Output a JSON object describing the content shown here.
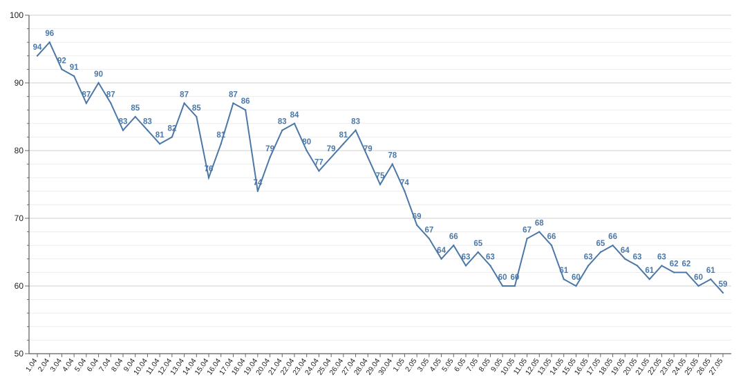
{
  "chart_data": {
    "type": "line",
    "title": "",
    "xlabel": "",
    "ylabel": "",
    "ylim": [
      50,
      100
    ],
    "y_ticks": [
      "50",
      "60",
      "70",
      "80",
      "90",
      "100"
    ],
    "grid": true,
    "legend": "none",
    "colors": {
      "line": "#4b77a6",
      "labels": "#4a78a8"
    },
    "categories": [
      "1.04",
      "2.04",
      "3.04",
      "4.04",
      "5.04",
      "6.04",
      "7.04",
      "8.04",
      "9.04",
      "10.04",
      "11.04",
      "12.04",
      "13.04",
      "14.04",
      "15.04",
      "16.04",
      "17.04",
      "18.04",
      "19.04",
      "20.04",
      "21.04",
      "22.04",
      "23.04",
      "24.04",
      "25.04",
      "26.04",
      "27.04",
      "28.04",
      "29.04",
      "30.04",
      "1.05",
      "2.05",
      "3.05",
      "4.05",
      "5.05",
      "6.05",
      "7.05",
      "8.05",
      "9.05",
      "10.05",
      "11.05",
      "12.05",
      "13.05",
      "14.05",
      "15.05",
      "16.05",
      "17.05",
      "18.05",
      "19.05",
      "20.05",
      "21.05",
      "22.05",
      "23.05",
      "24.05",
      "25.05",
      "26.05",
      "27.05"
    ],
    "points": [
      {
        "x": "1.04",
        "y": 94
      },
      {
        "x": "2.04",
        "y": 96
      },
      {
        "x": "3.04",
        "y": 92
      },
      {
        "x": "4.04",
        "y": 91
      },
      {
        "x": "5.04",
        "y": 87
      },
      {
        "x": "6.04",
        "y": 90
      },
      {
        "x": "7.04",
        "y": 87
      },
      {
        "x": "8.04",
        "y": 83
      },
      {
        "x": "9.04",
        "y": 85
      },
      {
        "x": "10.04",
        "y": 83
      },
      {
        "x": "11.04",
        "y": 81
      },
      {
        "x": "12.04",
        "y": 82
      },
      {
        "x": "13.04",
        "y": 87
      },
      {
        "x": "14.04",
        "y": 85
      },
      {
        "x": "15.04",
        "y": 76
      },
      {
        "x": "16.04",
        "y": 81
      },
      {
        "x": "17.04",
        "y": 87
      },
      {
        "x": "18.04",
        "y": 86
      },
      {
        "x": "19.04",
        "y": 74
      },
      {
        "x": "20.04",
        "y": 79
      },
      {
        "x": "21.04",
        "y": 83
      },
      {
        "x": "22.04",
        "y": 84
      },
      {
        "x": "23.04",
        "y": 80
      },
      {
        "x": "24.04",
        "y": 77
      },
      {
        "x": "26.04",
        "y": 81
      },
      {
        "x": "27.04",
        "y": 83
      },
      {
        "x": "28.04",
        "y": 79
      },
      {
        "x": "29.04",
        "y": 75
      },
      {
        "x": "30.04",
        "y": 78
      },
      {
        "x": "1.05",
        "y": 74
      },
      {
        "x": "2.05",
        "y": 69
      },
      {
        "x": "3.05",
        "y": 67
      },
      {
        "x": "4.05",
        "y": 64
      },
      {
        "x": "5.05",
        "y": 66
      },
      {
        "x": "6.05",
        "y": 63
      },
      {
        "x": "7.05",
        "y": 65
      },
      {
        "x": "8.05",
        "y": 63
      },
      {
        "x": "9.05",
        "y": 60
      },
      {
        "x": "10.05",
        "y": 60
      },
      {
        "x": "11.05",
        "y": 67
      },
      {
        "x": "12.05",
        "y": 68
      },
      {
        "x": "13.05",
        "y": 66
      },
      {
        "x": "14.05",
        "y": 61
      },
      {
        "x": "15.05",
        "y": 60
      },
      {
        "x": "16.05",
        "y": 63
      },
      {
        "x": "17.05",
        "y": 65
      },
      {
        "x": "18.05",
        "y": 66
      },
      {
        "x": "19.05",
        "y": 64
      },
      {
        "x": "20.05",
        "y": 63
      },
      {
        "x": "21.05",
        "y": 61
      },
      {
        "x": "22.05",
        "y": 63
      },
      {
        "x": "23.05",
        "y": 62
      },
      {
        "x": "24.05",
        "y": 62
      },
      {
        "x": "25.05",
        "y": 60
      },
      {
        "x": "26.05",
        "y": 61
      },
      {
        "x": "27.05",
        "y": 59
      }
    ],
    "extra_label": {
      "x": "25.04",
      "text": "79"
    }
  }
}
